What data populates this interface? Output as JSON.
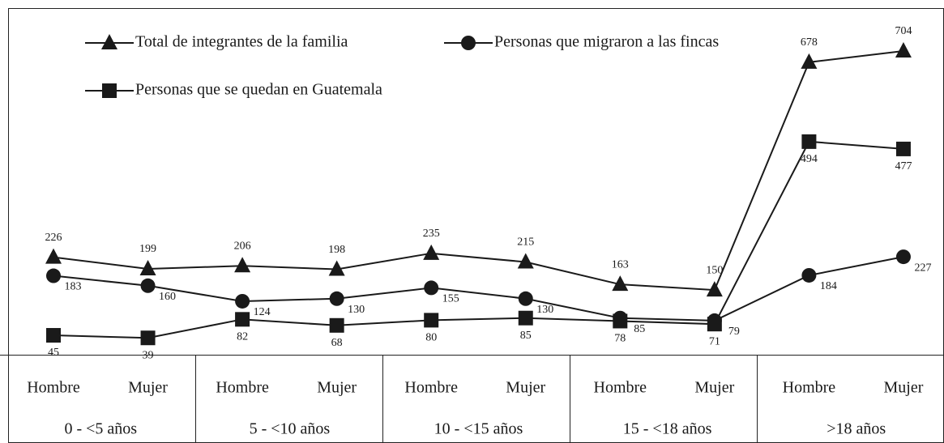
{
  "chart_data": {
    "type": "line",
    "categories": [
      "Hombre",
      "Mujer",
      "Hombre",
      "Mujer",
      "Hombre",
      "Mujer",
      "Hombre",
      "Mujer",
      "Hombre",
      "Mujer"
    ],
    "groups": [
      "0 - <5 años",
      "5 - <10 años",
      "10 - <15 años",
      "15 - <18 años",
      ">18 años"
    ],
    "series": [
      {
        "name": "Total de integrantes de la familia",
        "color": "#1a1a1a",
        "marker": "triangle",
        "values": [
          226,
          199,
          206,
          198,
          235,
          215,
          163,
          150,
          678,
          704
        ]
      },
      {
        "name": "Personas que migraron a las fincas",
        "color": "#1a1a1a",
        "marker": "circle",
        "values": [
          183,
          160,
          124,
          130,
          155,
          130,
          85,
          79,
          184,
          227
        ]
      },
      {
        "name": "Personas que se quedan en Guatemala",
        "color": "#1a1a1a",
        "marker": "square",
        "values": [
          45,
          39,
          82,
          68,
          80,
          85,
          78,
          71,
          494,
          477
        ]
      }
    ]
  }
}
